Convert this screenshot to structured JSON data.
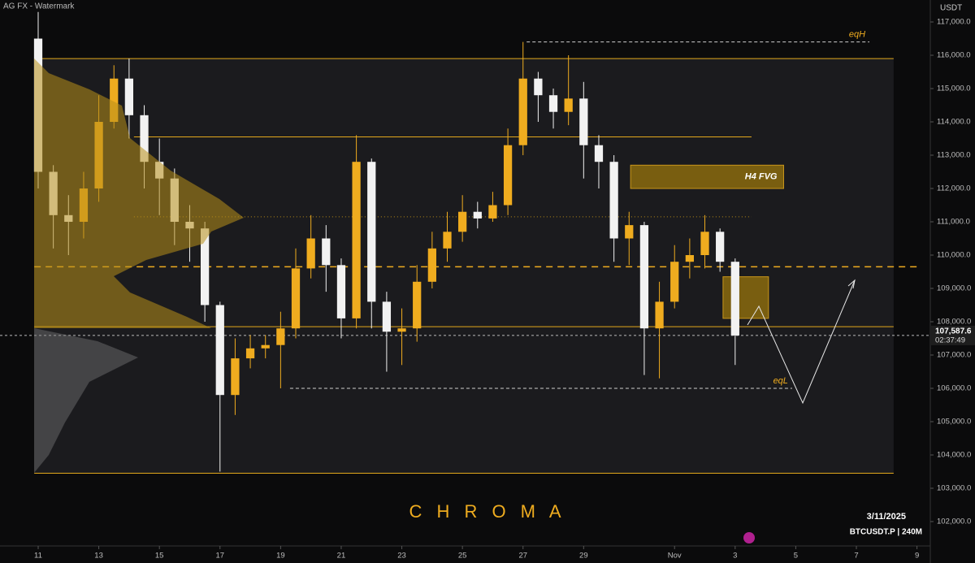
{
  "chart_data": {
    "type": "candlestick",
    "watermark": "AG FX - Watermark",
    "brand": "C H R O M A",
    "date_label": "3/11/2025",
    "symbol_label": "BTCUSDT.P | 240M",
    "y_unit": "USDT",
    "up_color": "#efac1f",
    "down_color": "#f2f2f2",
    "x": [
      11,
      11.5,
      12,
      12.5,
      13,
      13.5,
      14,
      14.5,
      15,
      15.5,
      16,
      16.5,
      17,
      17.5,
      18,
      18.5,
      19,
      19.5,
      20,
      20.5,
      21,
      21.5,
      22,
      22.5,
      23,
      23.5,
      24,
      24.5,
      25,
      25.5,
      26,
      26.5,
      27,
      27.5,
      28,
      28.5,
      29,
      29.5,
      30,
      30.5,
      31,
      31.5,
      32,
      32.5,
      33,
      33.5,
      34
    ],
    "open": [
      116500,
      112500,
      111200,
      111000,
      112000,
      114000,
      115300,
      114200,
      112800,
      112300,
      111000,
      110800,
      108500,
      105800,
      106900,
      107200,
      107300,
      107800,
      109600,
      110500,
      109700,
      108100,
      112800,
      108600,
      107700,
      107800,
      109200,
      110200,
      110700,
      111300,
      111100,
      111500,
      113300,
      115300,
      114800,
      114300,
      114700,
      113300,
      112800,
      110500,
      110900,
      107800,
      108600,
      109800,
      110000,
      110700,
      109800
    ],
    "high": [
      117300,
      112700,
      111800,
      112500,
      114800,
      115700,
      115900,
      114500,
      113500,
      112600,
      111500,
      111000,
      108600,
      107500,
      107600,
      107600,
      108300,
      110200,
      111200,
      110900,
      109900,
      113600,
      112900,
      108900,
      108400,
      109700,
      110700,
      111300,
      111800,
      111600,
      111900,
      113800,
      116400,
      115500,
      115000,
      116000,
      115200,
      113600,
      113000,
      111300,
      111000,
      109200,
      110300,
      110500,
      111200,
      110800,
      109900
    ],
    "low": [
      112000,
      110200,
      110000,
      110500,
      111600,
      113800,
      113500,
      112000,
      111200,
      110300,
      109800,
      108000,
      103500,
      105200,
      106600,
      106900,
      106000,
      107500,
      109300,
      108900,
      107500,
      107800,
      107800,
      106500,
      106700,
      107400,
      109000,
      109800,
      110400,
      110800,
      111000,
      111200,
      113000,
      114000,
      113800,
      113900,
      112300,
      112000,
      109800,
      109700,
      106400,
      106300,
      108400,
      109300,
      109600,
      109500,
      106700
    ],
    "close": [
      112500,
      111200,
      111000,
      112000,
      114000,
      115300,
      114200,
      112800,
      112300,
      111000,
      110800,
      108500,
      105800,
      106900,
      107200,
      107300,
      107800,
      109600,
      110500,
      109700,
      108100,
      112800,
      108600,
      107700,
      107800,
      109200,
      110200,
      110700,
      111300,
      111100,
      111500,
      113300,
      115300,
      114800,
      114300,
      114700,
      113300,
      112800,
      110500,
      110900,
      107800,
      108600,
      109800,
      110000,
      110700,
      109800,
      107587.6
    ],
    "last_price": {
      "value": 107587.6,
      "label": "107,587.6"
    },
    "countdown": "02:37:49",
    "xlim": [
      9.74,
      40.44
    ],
    "ylim": [
      101268,
      117659
    ],
    "xticks": [
      11,
      13,
      15,
      17,
      19,
      21,
      23,
      25,
      27,
      29,
      {
        "value": 32,
        "label": "Nov"
      },
      {
        "value": 34,
        "label": "3"
      },
      {
        "value": 36,
        "label": "5"
      },
      {
        "value": 38,
        "label": "7"
      },
      {
        "value": 40,
        "label": "9"
      }
    ],
    "yticks": [
      {
        "value": 102000,
        "label": "102,000.0"
      },
      {
        "value": 103000,
        "label": "103,000.0"
      },
      {
        "value": 104000,
        "label": "104,000.0"
      },
      {
        "value": 105000,
        "label": "105,000.0"
      },
      {
        "value": 106000,
        "label": "106,000.0"
      },
      {
        "value": 107000,
        "label": "107,000.0"
      },
      {
        "value": 108000,
        "label": "108,000.0"
      },
      {
        "value": 109000,
        "label": "109,000.0"
      },
      {
        "value": 110000,
        "label": "110,000.0"
      },
      {
        "value": 111000,
        "label": "111,000.0"
      },
      {
        "value": 112000,
        "label": "112,000.0"
      },
      {
        "value": 113000,
        "label": "113,000.0"
      },
      {
        "value": 114000,
        "label": "114,000.0"
      },
      {
        "value": 115000,
        "label": "115,000.0"
      },
      {
        "value": 116000,
        "label": "116,000.0"
      },
      {
        "value": 117000,
        "label": "117,000.0"
      }
    ],
    "levels": [
      {
        "value": 115900,
        "x0": 10.87,
        "x1": 39.23,
        "style": "solid"
      },
      {
        "value": 113550,
        "x0": 14.16,
        "x1": 34.54,
        "style": "solid"
      },
      {
        "value": 111150,
        "x0": 14.16,
        "x1": 34.54,
        "style": "dotted"
      },
      {
        "value": 109650,
        "x0": 10.87,
        "x1": 40.04,
        "style": "dashed"
      },
      {
        "value": 107850,
        "x0": 10.87,
        "x1": 39.23,
        "style": "solid"
      },
      {
        "value": 103450,
        "x0": 10.87,
        "x1": 39.23,
        "style": "solid"
      },
      {
        "value": 116400,
        "x0": 27.12,
        "x1": 38.43,
        "style": "white-dashed",
        "label": "eqH"
      },
      {
        "value": 106000,
        "x0": 19.31,
        "x1": 35.88,
        "style": "white-dashed",
        "label": "eqL"
      }
    ],
    "zones": [
      {
        "x0": 30.55,
        "x1": 35.6,
        "low": 112000,
        "high": 112700,
        "label": "H4 FVG"
      },
      {
        "x0": 33.6,
        "x1": 35.1,
        "low": 108100,
        "high": 109350
      }
    ]
  }
}
